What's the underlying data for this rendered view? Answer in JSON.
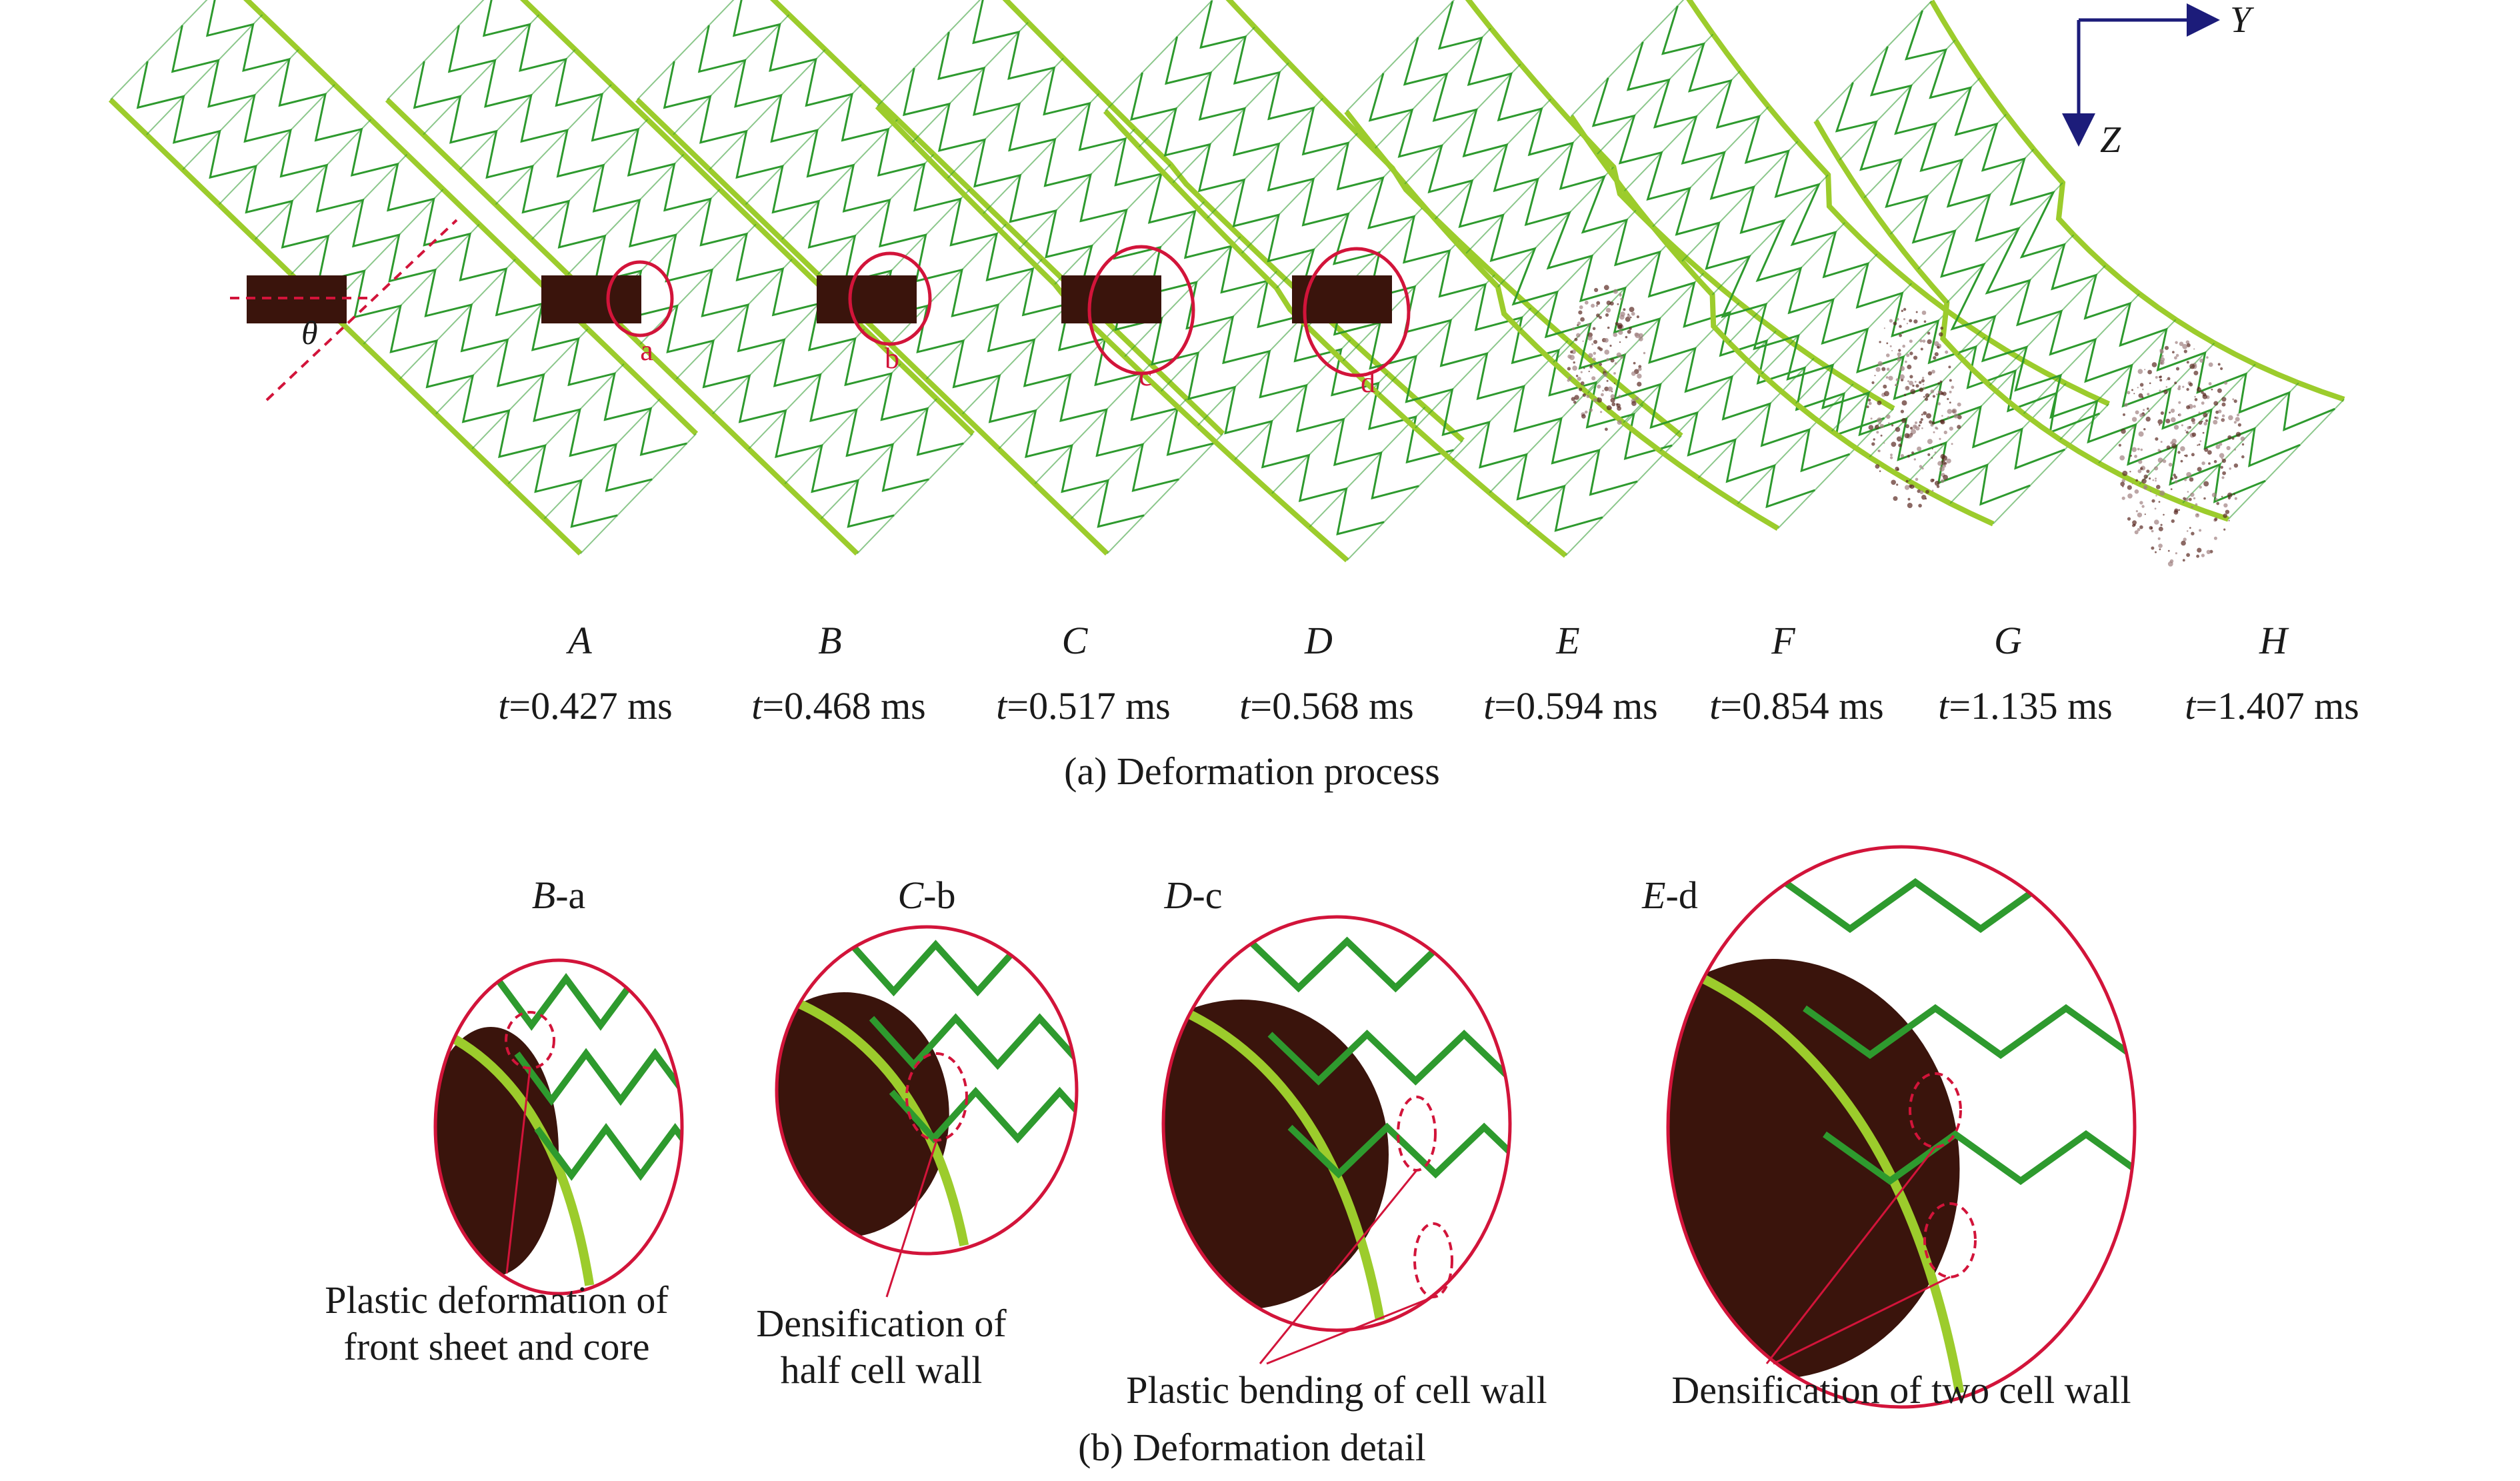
{
  "axes": {
    "y": "Y",
    "z": "Z"
  },
  "angle_symbol": "θ",
  "stages": [
    {
      "letter": "A",
      "t_prefix": "t",
      "t_value": "=0.427 ms",
      "mark": ""
    },
    {
      "letter": "B",
      "t_prefix": "t",
      "t_value": "=0.468 ms",
      "mark": "a"
    },
    {
      "letter": "C",
      "t_prefix": "t",
      "t_value": "=0.517 ms",
      "mark": "b"
    },
    {
      "letter": "D",
      "t_prefix": "t",
      "t_value": "=0.568 ms",
      "mark": "c"
    },
    {
      "letter": "E",
      "t_prefix": "t",
      "t_value": "=0.594 ms",
      "mark": "d"
    },
    {
      "letter": "F",
      "t_prefix": "t",
      "t_value": "=0.854 ms",
      "mark": ""
    },
    {
      "letter": "G",
      "t_prefix": "t",
      "t_value": "=1.135 ms",
      "mark": ""
    },
    {
      "letter": "H",
      "t_prefix": "t",
      "t_value": "=1.407 ms",
      "mark": ""
    }
  ],
  "caption_a": "(a) Deformation process",
  "details": [
    {
      "stage": "B",
      "suffix": "-a",
      "annotation": "Plastic deformation of front sheet and core"
    },
    {
      "stage": "C",
      "suffix": "-b",
      "annotation": "Densification of half cell wall"
    },
    {
      "stage": "D",
      "suffix": "-c",
      "annotation": "Plastic bending of cell wall"
    },
    {
      "stage": "E",
      "suffix": "-d",
      "annotation": "Densification of two cell wall"
    }
  ],
  "caption_b": "(b) Deformation detail",
  "colors": {
    "sheet": "#9ccc2c",
    "core": "#2e9a2e",
    "projectile": "#3a140c",
    "highlight": "#d2143a",
    "axis": "#1c1c7a"
  }
}
